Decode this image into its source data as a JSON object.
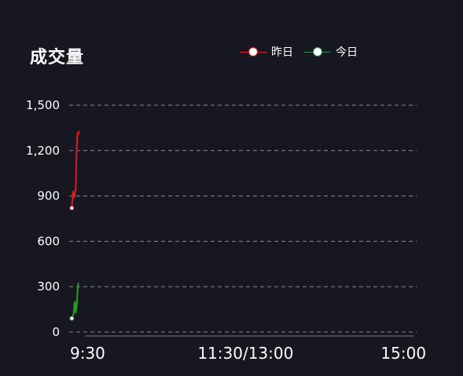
{
  "panel": {
    "title": "成交量",
    "background": "#171721"
  },
  "legend": {
    "items": [
      {
        "label": "昨日",
        "color": "#e0191f"
      },
      {
        "label": "今日",
        "color": "#2e8b57"
      }
    ]
  },
  "chart_data": {
    "type": "line",
    "title": "成交量",
    "xlabel": "",
    "ylabel": "",
    "ylim": [
      0,
      1500
    ],
    "y_ticks": [
      "0",
      "300",
      "600",
      "900",
      "1,200",
      "1,500"
    ],
    "y_tick_values": [
      0,
      300,
      600,
      900,
      1200,
      1500
    ],
    "x_ticks": [
      "9:30",
      "11:30/13:00",
      "15:00"
    ],
    "x_tick_minutes": [
      0,
      120,
      240
    ],
    "xlim_minutes": [
      -14,
      250
    ],
    "grid": true,
    "grid_style": "dashed",
    "legend_position": "top-right",
    "series": [
      {
        "name": "昨日",
        "color": "#e0191f",
        "x_minutes": [
          -12,
          -11.5,
          -11,
          -10.5,
          -10,
          -9.5,
          -9,
          -8.5,
          -8,
          -7.5,
          -7,
          -6.5
        ],
        "values": [
          820,
          880,
          930,
          900,
          890,
          920,
          950,
          1150,
          1280,
          1320,
          1310,
          1325
        ]
      },
      {
        "name": "今日",
        "color": "#22a020",
        "x_minutes": [
          -12,
          -11.5,
          -11,
          -10.5,
          -10,
          -9.5,
          -9,
          -8.5,
          -8,
          -7.5,
          -7
        ],
        "values": [
          90,
          95,
          110,
          130,
          190,
          200,
          130,
          150,
          210,
          290,
          320
        ]
      }
    ]
  }
}
